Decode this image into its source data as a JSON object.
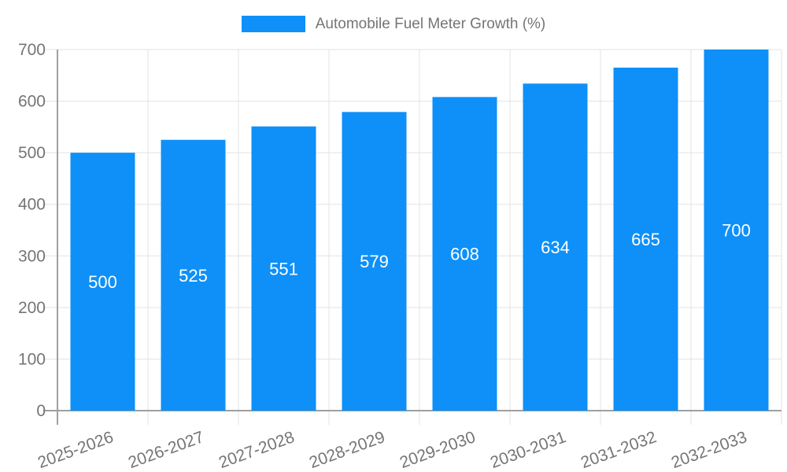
{
  "chart_data": {
    "type": "bar",
    "title": "Automobile Fuel Meter Growth (%)",
    "legend": {
      "label": "Automobile Fuel Meter Growth (%)",
      "position": "top"
    },
    "categories": [
      "2025-2026",
      "2026-2027",
      "2027-2028",
      "2028-2029",
      "2029-2030",
      "2030-2031",
      "2031-2032",
      "2032-2033"
    ],
    "values": [
      500,
      525,
      551,
      579,
      608,
      634,
      665,
      700
    ],
    "bar_value_labels": [
      "500",
      "525",
      "551",
      "579",
      "608",
      "634",
      "665",
      "700"
    ],
    "xlabel": "",
    "ylabel": "",
    "ylim": [
      0,
      700
    ],
    "ytick_step": 100,
    "ytick_labels": [
      "0",
      "100",
      "200",
      "300",
      "400",
      "500",
      "600",
      "700"
    ],
    "grid": true,
    "colors": {
      "bar": "#0e90f8",
      "grid": "#e3e3e3",
      "axis": "#a0a0a0",
      "tick_text": "#757575",
      "bar_label_text": "#ffffff",
      "legend_text": "#757575",
      "background": "#ffffff"
    }
  }
}
